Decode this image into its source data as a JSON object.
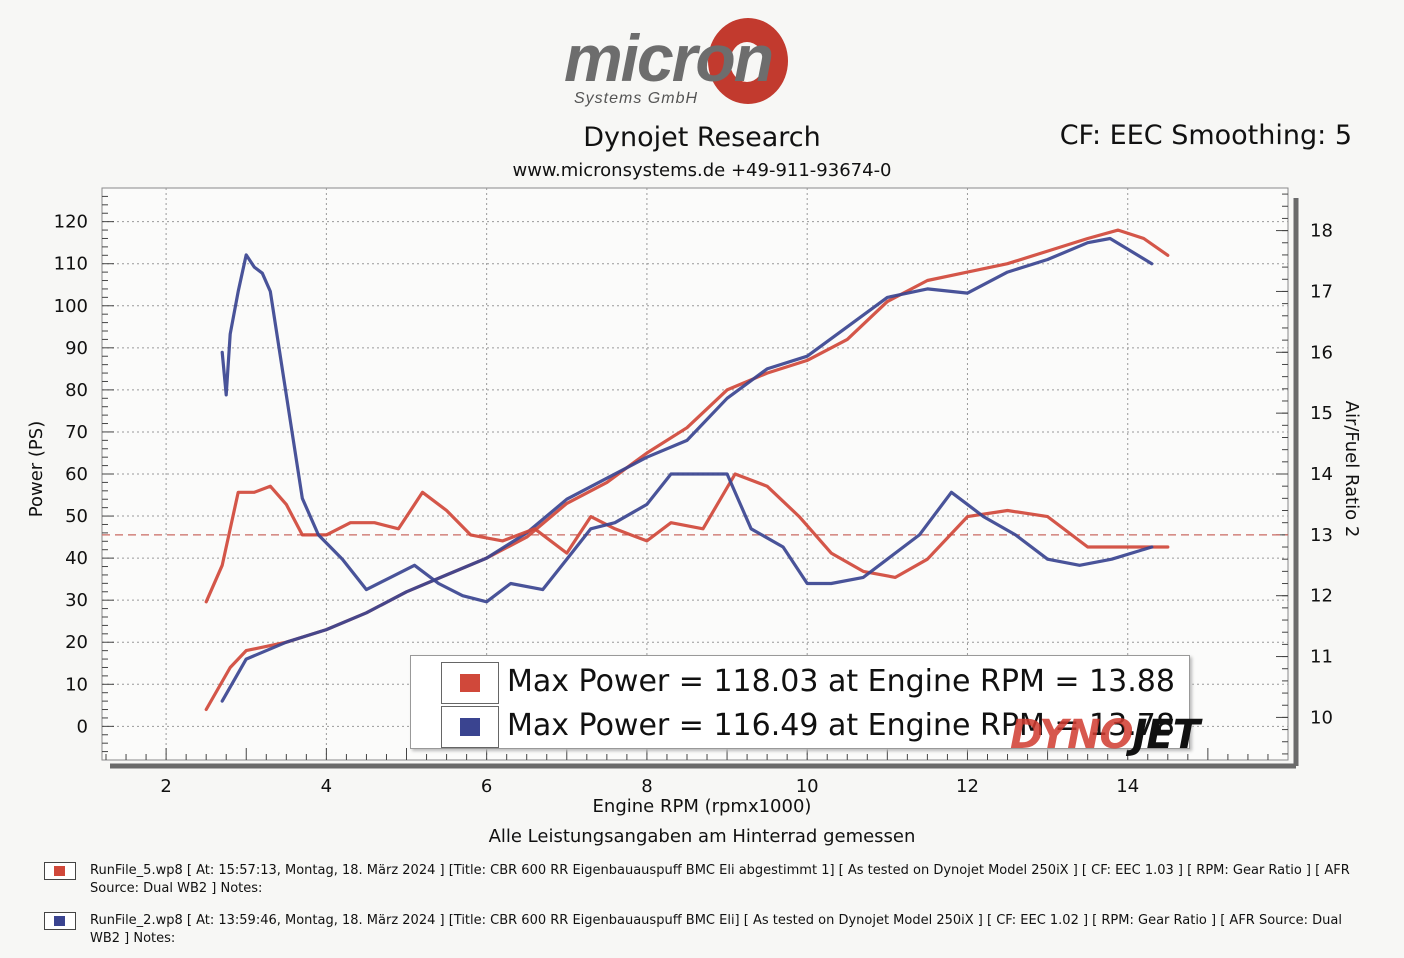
{
  "logo": {
    "word": "micron",
    "subtitle": "Systems GmbH"
  },
  "header": {
    "title": "Dynojet Research",
    "website_phone": "www.micronsystems.de   +49-911-93674-0",
    "cf": "CF: EEC Smoothing: 5"
  },
  "colors": {
    "run1": "#d0483a",
    "run2": "#3a4490"
  },
  "chart_data": {
    "type": "line",
    "xlabel": "Engine RPM (rpmx1000)",
    "ylabel": "Power (PS)",
    "y2label": "Air/Fuel Ratio 2",
    "xlim": [
      1.2,
      16.0
    ],
    "ylim": [
      -8,
      128
    ],
    "y2lim": [
      9.3,
      18.7
    ],
    "xticks": [
      "2",
      "4",
      "6",
      "8",
      "10",
      "12",
      "14"
    ],
    "yticks": [
      "0",
      "10",
      "20",
      "30",
      "40",
      "50",
      "60",
      "70",
      "80",
      "90",
      "100",
      "110",
      "120"
    ],
    "y2ticks": [
      "10",
      "11",
      "12",
      "13",
      "14",
      "15",
      "16",
      "17",
      "18"
    ],
    "afr_reference": 13.0,
    "grid": true,
    "series": [
      {
        "axis": "left",
        "color": "run1",
        "x": [
          2.5,
          2.8,
          3.0,
          3.5,
          4.0,
          4.5,
          5.0,
          5.5,
          6.0,
          6.5,
          7.0,
          7.5,
          8.0,
          8.5,
          9.0,
          9.5,
          10.0,
          10.5,
          11.0,
          11.5,
          12.0,
          12.5,
          13.0,
          13.5,
          13.88,
          14.2,
          14.5
        ],
        "y": [
          4,
          14,
          18,
          20,
          23,
          27,
          32,
          36,
          40,
          45,
          53,
          58,
          65,
          71,
          80,
          84,
          87,
          92,
          101,
          106,
          108,
          110,
          113,
          116,
          118,
          116,
          112
        ]
      },
      {
        "axis": "left",
        "color": "run2",
        "x": [
          2.7,
          3.0,
          3.5,
          4.0,
          4.5,
          5.0,
          5.5,
          6.0,
          6.5,
          7.0,
          7.5,
          8.0,
          8.5,
          9.0,
          9.5,
          10.0,
          10.5,
          11.0,
          11.5,
          12.0,
          12.5,
          13.0,
          13.5,
          13.78,
          14.3
        ],
        "y": [
          6,
          16,
          20,
          23,
          27,
          32,
          36,
          40,
          46,
          54,
          59,
          64,
          68,
          78,
          85,
          88,
          95,
          102,
          104,
          103,
          108,
          111,
          115,
          116,
          110
        ]
      },
      {
        "axis": "right",
        "color": "run1",
        "x": [
          2.5,
          2.7,
          2.9,
          3.1,
          3.3,
          3.5,
          3.7,
          4.0,
          4.3,
          4.6,
          4.9,
          5.2,
          5.5,
          5.8,
          6.2,
          6.6,
          7.0,
          7.3,
          7.6,
          8.0,
          8.3,
          8.7,
          9.1,
          9.5,
          9.9,
          10.3,
          10.7,
          11.1,
          11.5,
          12.0,
          12.5,
          13.0,
          13.5,
          14.0,
          14.5
        ],
        "y": [
          11.9,
          12.5,
          13.7,
          13.7,
          13.8,
          13.5,
          13.0,
          13.0,
          13.2,
          13.2,
          13.1,
          13.7,
          13.4,
          13.0,
          12.9,
          13.1,
          12.7,
          13.3,
          13.1,
          12.9,
          13.2,
          13.1,
          14.0,
          13.8,
          13.3,
          12.7,
          12.4,
          12.3,
          12.6,
          13.3,
          13.4,
          13.3,
          12.8,
          12.8,
          12.8
        ]
      },
      {
        "axis": "right",
        "color": "run2",
        "x": [
          2.7,
          2.75,
          2.8,
          2.9,
          3.0,
          3.1,
          3.2,
          3.3,
          3.5,
          3.7,
          3.9,
          4.2,
          4.5,
          4.8,
          5.1,
          5.4,
          5.7,
          6.0,
          6.3,
          6.7,
          7.0,
          7.3,
          7.6,
          8.0,
          8.3,
          8.7,
          9.0,
          9.3,
          9.7,
          10.0,
          10.3,
          10.7,
          11.0,
          11.4,
          11.8,
          12.2,
          12.6,
          13.0,
          13.4,
          13.8,
          14.3
        ],
        "y": [
          16.0,
          15.3,
          16.3,
          17.0,
          17.6,
          17.4,
          17.3,
          17.0,
          15.3,
          13.6,
          13.0,
          12.6,
          12.1,
          12.3,
          12.5,
          12.2,
          12.0,
          11.9,
          12.2,
          12.1,
          12.6,
          13.1,
          13.2,
          13.5,
          14.0,
          14.0,
          14.0,
          13.1,
          12.8,
          12.2,
          12.2,
          12.3,
          12.6,
          13.0,
          13.7,
          13.3,
          13.0,
          12.6,
          12.5,
          12.6,
          12.8
        ]
      }
    ]
  },
  "legend": {
    "line1": "Max Power = 118.03 at Engine RPM = 13.88",
    "line2": "Max Power = 116.49 at Engine RPM = 13.78"
  },
  "watermark": {
    "part1": "DYNO",
    "part2": "JET"
  },
  "footer": {
    "note": "Alle Leistungsangaben am Hinterrad gemessen",
    "run1": "RunFile_5.wp8 [ At: 15:57:13, Montag, 18. März 2024 ] [Title: CBR 600 RR Eigenbauauspuff BMC Eli abgestimmt 1]  [ As tested on Dynojet Model 250iX ] [ CF: EEC 1.03 ] [ RPM: Gear Ratio ] [ AFR Source: Dual WB2 ] Notes:",
    "run2": "RunFile_2.wp8 [ At: 13:59:46, Montag, 18. März 2024 ] [Title: CBR 600 RR Eigenbauauspuff BMC Eli]  [ As tested on Dynojet Model 250iX ] [ CF: EEC 1.02 ] [ RPM: Gear Ratio ] [ AFR Source: Dual WB2 ] Notes:"
  }
}
